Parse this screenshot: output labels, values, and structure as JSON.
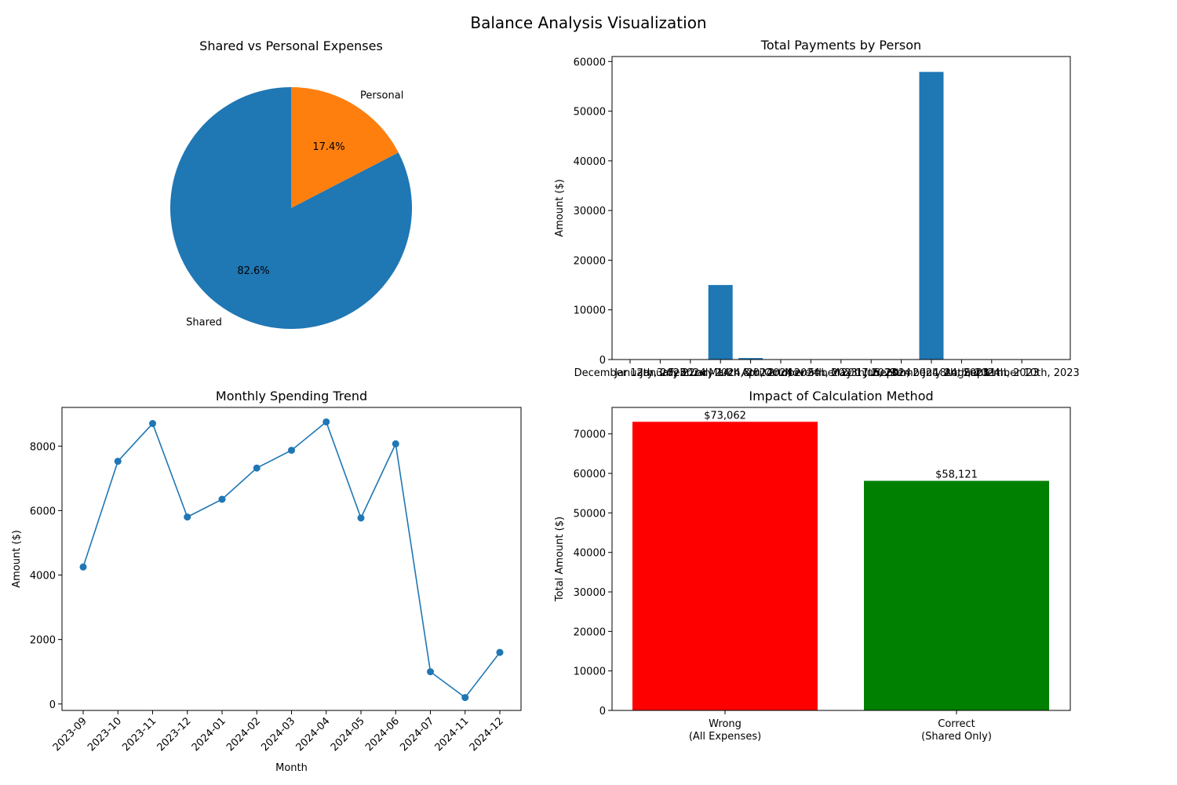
{
  "figure_title": "Balance Analysis Visualization",
  "chart_data": [
    {
      "id": "pie",
      "type": "pie",
      "title": "Shared vs Personal Expenses",
      "labels": [
        "Shared",
        "Personal"
      ],
      "values": [
        82.6,
        17.4
      ],
      "autopct": [
        "82.6%",
        "17.4%"
      ],
      "colors": [
        "#1f77b4",
        "#ff7f0e"
      ],
      "start_angle_deg": 90,
      "direction": "counterclockwise"
    },
    {
      "id": "payments",
      "type": "bar",
      "title": "Total Payments by Person",
      "ylabel": "Amount ($)",
      "xlabel": "",
      "color": "#1f77b4",
      "ylim": [
        0,
        61000
      ],
      "yticks": [
        0,
        10000,
        20000,
        30000,
        40000,
        50000,
        60000
      ],
      "categories": [
        "December 12th, 2023",
        "January 3rd, 2024",
        "January 22nd, 2024",
        "February 14th, 2024",
        "March 8th, 2024",
        "April 2nd, 2024",
        "October 5th, 2023",
        "November 20th, 2023",
        "May 17th, 2024",
        "June 9th, 2024",
        "September 18th, 2023",
        "July 24th, 2024",
        "August 11th, 2023",
        "September 10th, 2023"
      ],
      "values": [
        0,
        0,
        0,
        15000,
        300,
        0,
        0,
        0,
        0,
        0,
        57900,
        0,
        0,
        0
      ]
    },
    {
      "id": "trend",
      "type": "line",
      "title": "Monthly Spending Trend",
      "xlabel": "Month",
      "ylabel": "Amount ($)",
      "color": "#1f77b4",
      "marker": "circle",
      "ylim": [
        -200,
        9200
      ],
      "yticks": [
        0,
        2000,
        4000,
        6000,
        8000
      ],
      "x": [
        "2023-09",
        "2023-10",
        "2023-11",
        "2023-12",
        "2024-01",
        "2024-02",
        "2024-03",
        "2024-04",
        "2024-05",
        "2024-06",
        "2024-07",
        "2024-11",
        "2024-12"
      ],
      "y": [
        4250,
        7530,
        8700,
        5800,
        6350,
        7320,
        7870,
        8750,
        5770,
        8070,
        1000,
        200,
        1600
      ]
    },
    {
      "id": "method",
      "type": "bar",
      "title": "Impact of Calculation Method",
      "ylabel": "Total Amount ($)",
      "xlabel": "",
      "ylim": [
        0,
        76700
      ],
      "yticks": [
        0,
        10000,
        20000,
        30000,
        40000,
        50000,
        60000,
        70000
      ],
      "categories": [
        "Wrong\n(All Expenses)",
        "Correct\n(Shared Only)"
      ],
      "values": [
        73062,
        58121
      ],
      "data_labels": [
        "$73,062",
        "$58,121"
      ],
      "colors": [
        "#ff0000",
        "#008000"
      ]
    }
  ]
}
